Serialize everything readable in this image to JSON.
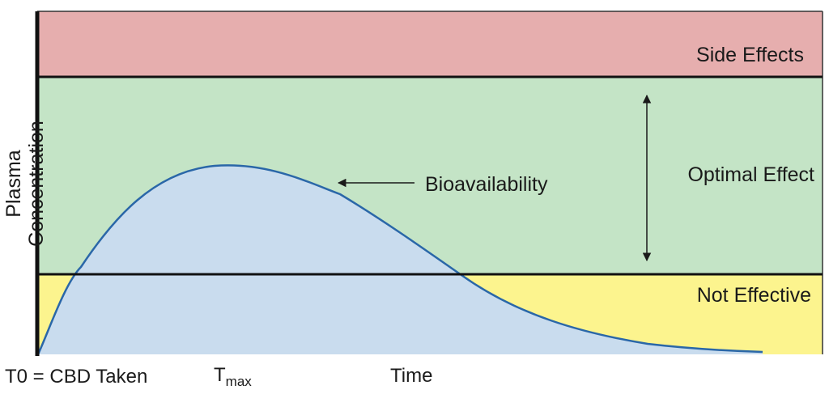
{
  "zones": {
    "side_effects": {
      "label": "Side Effects",
      "color": "#e6aeae"
    },
    "optimal_effect": {
      "label": "Optimal Effect",
      "color": "#c4e4c6"
    },
    "not_effective": {
      "label": "Not Effective",
      "color": "#fcf48e"
    }
  },
  "curve": {
    "label": "Bioavailability",
    "fill": "#c9dcee",
    "stroke": "#2a67a8"
  },
  "axes": {
    "y_label": "Plasma Concentration",
    "x_label": "Time",
    "t0_label": "T0 = CBD Taken",
    "tmax_main": "T",
    "tmax_sub": "max"
  }
}
